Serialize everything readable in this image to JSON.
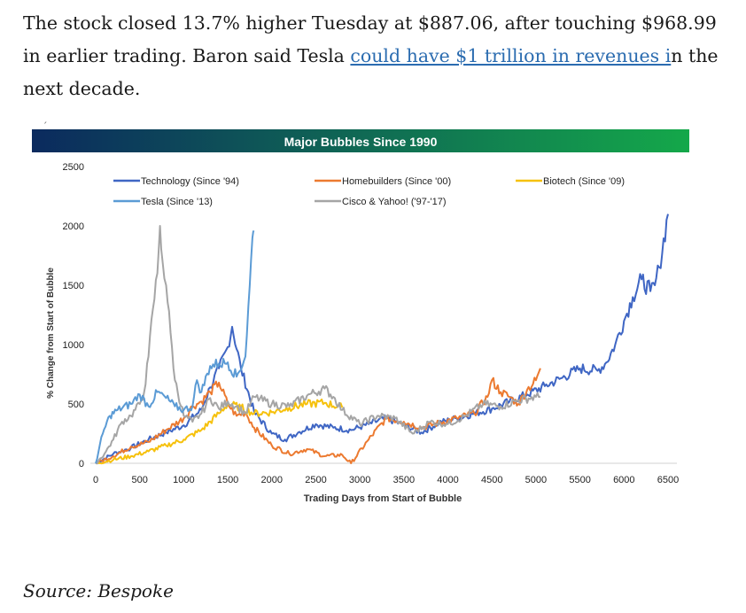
{
  "article": {
    "before_link": "The stock closed 13.7% higher Tuesday at $887.06, after touching $968.99 in earlier trading. Baron said Tesla ",
    "link_text": "could have $1 trillion in revenues i",
    "after_link": "n the next decade."
  },
  "stray_mark": "´",
  "source": "Source: Bespoke",
  "colors": {
    "banner_left": "#0b2a5e",
    "banner_right": "#14a84a",
    "technology": "#3f66c4",
    "homebuilders": "#ec7a30",
    "biotech": "#f6c10d",
    "tesla": "#5b9bd5",
    "cisco_yahoo": "#a5a5a5"
  },
  "chart_data": {
    "type": "line",
    "title": "Major Bubbles Since 1990",
    "xlabel": "Trading Days from Start of Bubble",
    "ylabel": "% Change from Start of Bubble",
    "xlim": [
      0,
      6500
    ],
    "ylim": [
      0,
      2500
    ],
    "x_ticks": [
      0,
      500,
      1000,
      1500,
      2000,
      2500,
      3000,
      3500,
      4000,
      4500,
      5000,
      5500,
      6000,
      6500
    ],
    "y_ticks": [
      0,
      500,
      1000,
      1500,
      2000,
      2500
    ],
    "grid": false,
    "legend_position": "top",
    "series": [
      {
        "name": "Technology (Since '94)",
        "color_key": "technology",
        "x": [
          0,
          200,
          400,
          600,
          800,
          1000,
          1200,
          1300,
          1400,
          1500,
          1550,
          1650,
          1800,
          2000,
          2150,
          2300,
          2500,
          2700,
          2900,
          3100,
          3300,
          3500,
          3700,
          3900,
          4100,
          4300,
          4500,
          4700,
          4900,
          5100,
          5300,
          5500,
          5700,
          5800,
          5900,
          6000,
          6100,
          6200,
          6300,
          6350,
          6400,
          6500
        ],
        "y": [
          0,
          80,
          130,
          200,
          260,
          320,
          450,
          640,
          800,
          980,
          1150,
          800,
          430,
          250,
          200,
          260,
          330,
          300,
          280,
          330,
          380,
          320,
          260,
          340,
          380,
          420,
          460,
          520,
          580,
          650,
          720,
          800,
          780,
          850,
          1000,
          1200,
          1400,
          1550,
          1450,
          1500,
          1650,
          2100
        ]
      },
      {
        "name": "Homebuilders (Since '00)",
        "color_key": "homebuilders",
        "x": [
          0,
          200,
          400,
          600,
          800,
          1000,
          1100,
          1200,
          1300,
          1400,
          1500,
          1600,
          1700,
          1800,
          2000,
          2200,
          2400,
          2600,
          2800,
          2900,
          3100,
          3300,
          3500,
          3700,
          3900,
          4100,
          4300,
          4450,
          4500,
          4600,
          4700,
          4800,
          4900,
          5000,
          5050
        ],
        "y": [
          0,
          60,
          140,
          180,
          280,
          380,
          480,
          520,
          600,
          680,
          500,
          400,
          430,
          300,
          150,
          80,
          120,
          60,
          70,
          0,
          200,
          380,
          350,
          300,
          340,
          380,
          420,
          560,
          700,
          600,
          560,
          500,
          620,
          700,
          800
        ]
      },
      {
        "name": "Biotech (Since '09)",
        "color_key": "biotech",
        "x": [
          0,
          200,
          400,
          600,
          800,
          1000,
          1200,
          1400,
          1500,
          1650,
          1800,
          2000,
          2200,
          2400,
          2600,
          2800
        ],
        "y": [
          0,
          30,
          60,
          100,
          150,
          200,
          280,
          420,
          500,
          470,
          420,
          430,
          470,
          500,
          510,
          470
        ]
      },
      {
        "name": "Tesla (Since '13)",
        "color_key": "tesla",
        "x": [
          0,
          80,
          160,
          250,
          400,
          500,
          600,
          700,
          800,
          900,
          1000,
          1100,
          1150,
          1200,
          1300,
          1400,
          1500,
          1600,
          1700,
          1750,
          1780,
          1800
        ],
        "y": [
          0,
          250,
          400,
          450,
          500,
          580,
          480,
          600,
          550,
          480,
          450,
          480,
          700,
          600,
          820,
          840,
          850,
          730,
          900,
          1500,
          1900,
          1950
        ]
      },
      {
        "name": "Cisco & Yahoo! ('97-'17)",
        "color_key": "cisco_yahoo",
        "x": [
          0,
          100,
          200,
          300,
          400,
          500,
          550,
          600,
          650,
          700,
          730,
          760,
          800,
          850,
          900,
          1000,
          1100,
          1200,
          1300,
          1400,
          1500,
          1600,
          1700,
          1800,
          2000,
          2200,
          2400,
          2600,
          2700,
          2800,
          3000,
          3200,
          3400,
          3600,
          3800,
          4000,
          4200,
          4400,
          4600,
          4800,
          5000,
          5050
        ],
        "y": [
          0,
          80,
          200,
          350,
          400,
          500,
          600,
          900,
          1300,
          1600,
          2000,
          1700,
          1500,
          1100,
          700,
          400,
          350,
          420,
          550,
          460,
          520,
          480,
          420,
          560,
          500,
          480,
          570,
          630,
          560,
          450,
          330,
          400,
          380,
          250,
          350,
          330,
          400,
          500,
          480,
          530,
          560,
          560
        ]
      }
    ]
  }
}
